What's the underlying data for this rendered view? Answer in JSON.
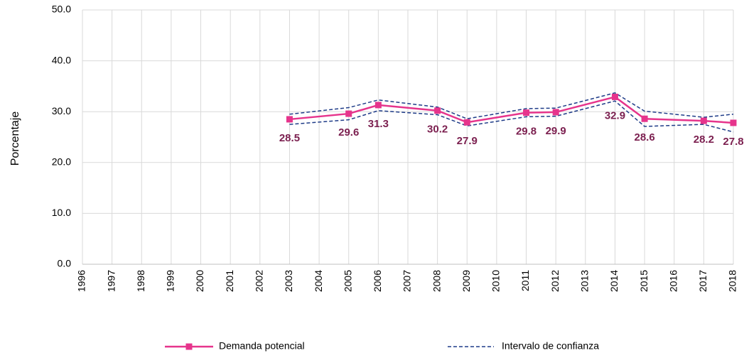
{
  "chart_data": {
    "type": "line",
    "y_label": "Porcentaje",
    "x": [
      2003,
      2005,
      2006,
      2008,
      2009,
      2011,
      2012,
      2014,
      2015,
      2017,
      2018
    ],
    "xlim": [
      1996,
      2018
    ],
    "xticks": [
      1996,
      1997,
      1998,
      1999,
      2000,
      2001,
      2002,
      2003,
      2004,
      2005,
      2006,
      2007,
      2008,
      2009,
      2010,
      2011,
      2012,
      2013,
      2014,
      2015,
      2016,
      2017,
      2018
    ],
    "ylim": [
      0,
      50
    ],
    "yticks": [
      {
        "value": 0,
        "label": "0.0"
      },
      {
        "value": 10,
        "label": "10.0"
      },
      {
        "value": 20,
        "label": "20.0"
      },
      {
        "value": 30,
        "label": "30.0"
      },
      {
        "value": 40,
        "label": "40.0"
      },
      {
        "value": 50,
        "label": "50.0"
      }
    ],
    "grid": true,
    "legend": "bottom",
    "series": [
      {
        "name": "Demanda potencial",
        "color": "#e6348c",
        "values": [
          28.5,
          29.6,
          31.3,
          30.2,
          27.9,
          29.8,
          29.9,
          32.9,
          28.6,
          28.2,
          27.8
        ]
      },
      {
        "name": "Intervalo de confianza",
        "color": "#1f3c88",
        "upper": [
          29.5,
          30.8,
          32.3,
          30.9,
          28.6,
          30.6,
          30.7,
          33.7,
          30.1,
          28.9,
          29.5
        ],
        "lower": [
          27.5,
          28.4,
          30.2,
          29.4,
          27.2,
          29.0,
          29.1,
          32.1,
          27.1,
          27.5,
          26.0
        ]
      }
    ]
  }
}
